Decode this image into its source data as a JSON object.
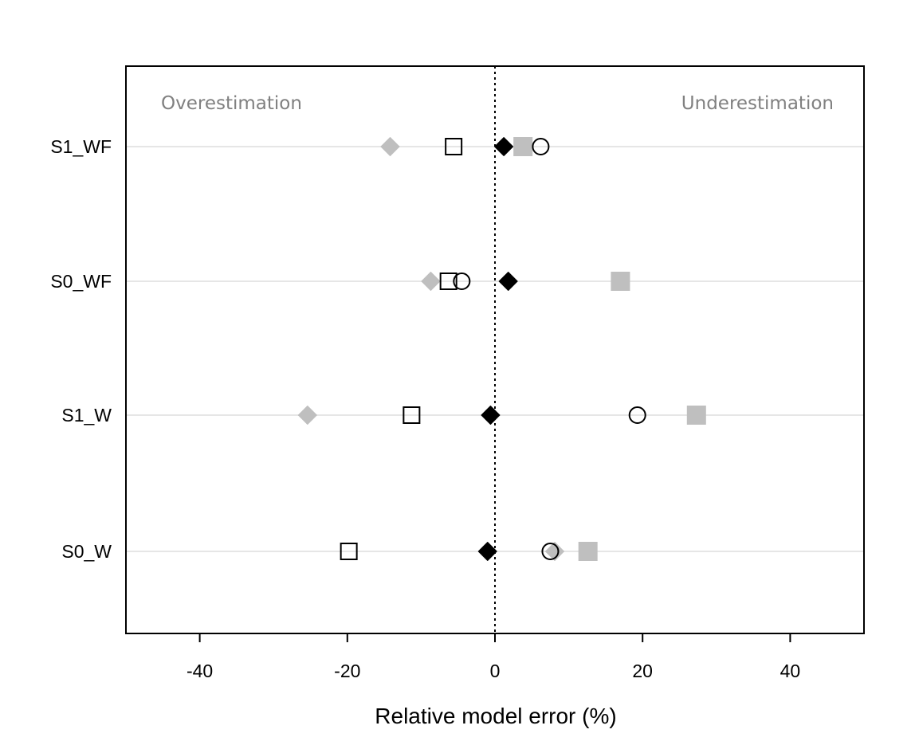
{
  "chart_data": {
    "type": "scatter",
    "xlabel": "Relative model error (%)",
    "ylabel": "",
    "xlim": [
      -50,
      50
    ],
    "x_ticks": [
      -40,
      -20,
      0,
      20,
      40
    ],
    "x_tick_labels": [
      "-40",
      "-20",
      "0",
      "20",
      "40"
    ],
    "categories": [
      "S1_WF",
      "S0_WF",
      "S1_W",
      "S0_W"
    ],
    "grid": "horizontal lines at each category",
    "reference_line": {
      "x": 0,
      "style": "dotted"
    },
    "annotations": [
      {
        "text": "Overestimation",
        "position": "top-left"
      },
      {
        "text": "Underestimation",
        "position": "top-right"
      }
    ],
    "colors": {
      "black": "#000000",
      "grey": "#bfbfbf",
      "axis": "#000000",
      "gridline": "#e6e6e6",
      "annotation": "#808080"
    },
    "series": [
      {
        "marker": "filled-diamond-black",
        "values": {
          "S1_WF": 1.2,
          "S0_WF": 1.8,
          "S1_W": -0.6,
          "S0_W": -1.0
        }
      },
      {
        "marker": "filled-diamond-grey",
        "values": {
          "S1_WF": -14.2,
          "S0_WF": -8.7,
          "S1_W": -25.4,
          "S0_W": 8.1
        }
      },
      {
        "marker": "open-square",
        "values": {
          "S1_WF": -5.6,
          "S0_WF": -6.3,
          "S1_W": -11.3,
          "S0_W": -19.8
        }
      },
      {
        "marker": "filled-square-grey",
        "values": {
          "S1_WF": 3.8,
          "S0_WF": 17.0,
          "S1_W": 27.3,
          "S0_W": 12.6
        }
      },
      {
        "marker": "open-circle",
        "values": {
          "S1_WF": 6.2,
          "S0_WF": -4.5,
          "S1_W": 19.3,
          "S0_W": 7.5
        }
      }
    ]
  }
}
